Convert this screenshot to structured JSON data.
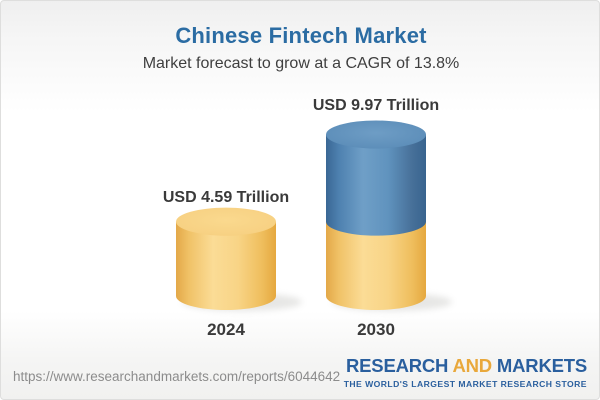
{
  "header": {
    "title": "Chinese Fintech Market",
    "subtitle": "Market forecast to grow at a CAGR of 13.8%"
  },
  "chart_data": {
    "type": "bar",
    "style": "3d-cylinder-stacked",
    "title": "Chinese Fintech Market",
    "subtitle": "Market forecast to grow at a CAGR of 13.8%",
    "unit": "USD Trillion",
    "cagr_percent": 13.8,
    "categories": [
      "2024",
      "2030"
    ],
    "values": [
      4.59,
      9.97
    ],
    "axes_visible": false,
    "legend_visible": false,
    "bars": [
      {
        "category": "2024",
        "total": 4.59,
        "label": "USD 4.59 Trillion",
        "segments": [
          {
            "from": 0,
            "to": 4.59,
            "color": "gold"
          }
        ]
      },
      {
        "category": "2030",
        "total": 9.97,
        "label": "USD 9.97 Trillion",
        "segments": [
          {
            "from": 0,
            "to": 4.59,
            "color": "gold"
          },
          {
            "from": 4.59,
            "to": 9.97,
            "color": "blue"
          }
        ]
      }
    ],
    "colors": {
      "gold": "#F7CE7E",
      "blue": "#4E81B0",
      "title_blue": "#2B6CA3",
      "text_dark": "#3A3A3A"
    }
  },
  "footer": {
    "url": "https://www.researchandmarkets.com/reports/6044642",
    "logo": {
      "part1": "RESEARCH",
      "part2": "AND",
      "part3": "MARKETS",
      "tagline": "THE WORLD'S LARGEST MARKET RESEARCH STORE"
    }
  }
}
